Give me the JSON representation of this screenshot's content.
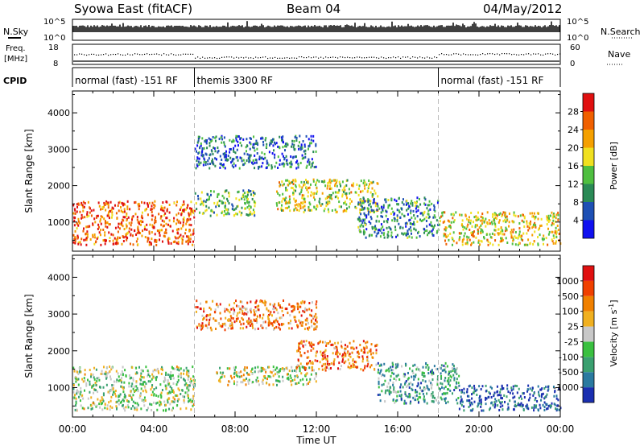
{
  "header": {
    "radar": "Syowa East (fitACF)",
    "beam": "Beam 04",
    "date": "04/May/2012"
  },
  "strips": {
    "nsky_label": "N.Sky",
    "nsearch_label": "N.Search",
    "freq_label": "Freq.",
    "freq_unit": "[MHz]",
    "nave_label": "Nave",
    "cpid_label": "CPID",
    "left_ticks": [
      "10^5",
      "10^0",
      "18",
      "8"
    ],
    "right_ticks": [
      "10^5",
      "10^0",
      "60",
      "0"
    ]
  },
  "cpid_segments": [
    {
      "label": "normal (fast) -151 RF",
      "start": 0,
      "end": 6
    },
    {
      "label": "themis 3300 RF",
      "start": 6,
      "end": 18
    },
    {
      "label": "normal (fast) -151 RF",
      "start": 18,
      "end": 24
    }
  ],
  "chart_data": [
    {
      "type": "heatmap",
      "title": "",
      "xlabel": "Time UT",
      "ylabel": "Slant Range [km]",
      "x_ticks": [
        "00:00",
        "04:00",
        "08:00",
        "12:00",
        "16:00",
        "20:00",
        "00:00"
      ],
      "x_range_hours": [
        0,
        24
      ],
      "y_ticks": [
        1000,
        2000,
        3000,
        4000
      ],
      "ylim": [
        200,
        4600
      ],
      "colorbar": {
        "label": "Power [dB]",
        "ticks": [
          "4",
          "8",
          "12",
          "16",
          "20",
          "24",
          "28"
        ],
        "colors": [
          "#1010f0",
          "#1e50b4",
          "#2a8a56",
          "#4fbf40",
          "#f0e020",
          "#f5a000",
          "#f06000",
          "#e01010"
        ]
      },
      "scatter_regions": [
        {
          "t": [
            0,
            6
          ],
          "r": [
            400,
            1600
          ],
          "level": 0.82
        },
        {
          "t": [
            6,
            9
          ],
          "r": [
            1200,
            1900
          ],
          "level": 0.4
        },
        {
          "t": [
            10,
            15
          ],
          "r": [
            1300,
            2200
          ],
          "level": 0.55
        },
        {
          "t": [
            14,
            18
          ],
          "r": [
            600,
            1700
          ],
          "level": 0.3
        },
        {
          "t": [
            18,
            24
          ],
          "r": [
            400,
            1300
          ],
          "level": 0.6
        },
        {
          "t": [
            6,
            12
          ],
          "r": [
            2500,
            3400
          ],
          "level": 0.25
        }
      ]
    },
    {
      "type": "heatmap",
      "title": "",
      "xlabel": "Time UT",
      "ylabel": "Slant Range [km]",
      "x_ticks": [
        "00:00",
        "04:00",
        "08:00",
        "12:00",
        "16:00",
        "20:00",
        "00:00"
      ],
      "x_range_hours": [
        0,
        24
      ],
      "y_ticks": [
        1000,
        2000,
        3000,
        4000
      ],
      "ylim": [
        200,
        4600
      ],
      "colorbar": {
        "label": "Velocity [m s",
        "label_sup": "-1",
        "label_end": "]",
        "ticks": [
          "1000",
          "500",
          "100",
          "25",
          "-25",
          "-100",
          "-500",
          "-1000"
        ],
        "colors": [
          "#1a2fb0",
          "#2a7aa0",
          "#3aa070",
          "#3ac040",
          "#c8c8c8",
          "#f0b020",
          "#f08000",
          "#f04000",
          "#e01010"
        ]
      },
      "scatter_regions": [
        {
          "t": [
            0,
            6
          ],
          "r": [
            400,
            1600
          ],
          "level": 0.45
        },
        {
          "t": [
            7,
            12
          ],
          "r": [
            1100,
            1600
          ],
          "level": 0.5
        },
        {
          "t": [
            11,
            15
          ],
          "r": [
            1500,
            2300
          ],
          "level": 0.75
        },
        {
          "t": [
            15,
            19
          ],
          "r": [
            600,
            1700
          ],
          "level": 0.3
        },
        {
          "t": [
            19,
            24
          ],
          "r": [
            400,
            1100
          ],
          "level": 0.1
        },
        {
          "t": [
            6,
            12
          ],
          "r": [
            2600,
            3400
          ],
          "level": 0.72
        }
      ]
    }
  ]
}
